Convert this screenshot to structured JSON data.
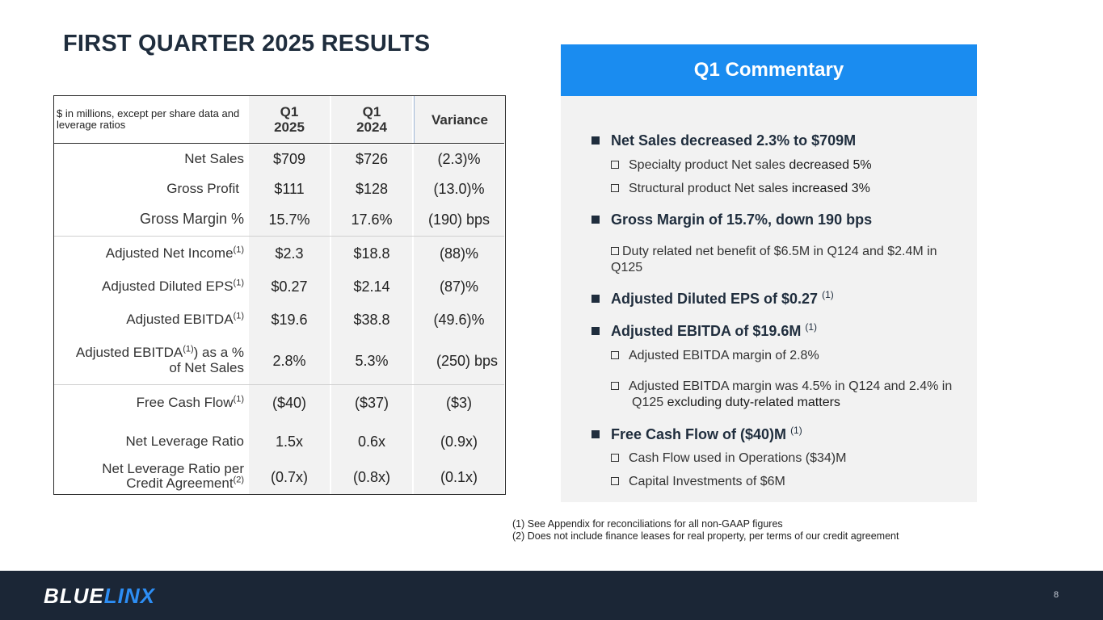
{
  "title": "FIRST QUARTER 2025 RESULTS",
  "table": {
    "header_desc": "$ in millions, except per share data and leverage ratios",
    "col1": "Q1\n2025",
    "col1_a": "Q1",
    "col1_b": "2025",
    "col2_a": "Q1",
    "col2_b": "2024",
    "col3": "Variance",
    "rows": [
      {
        "label": "Net Sales",
        "sup": "",
        "q1_2025": "$709",
        "q1_2024": "$726",
        "variance": "(2.3)%"
      },
      {
        "label": "Gross Profit",
        "sup": "",
        "q1_2025": "$111",
        "q1_2024": "$128",
        "variance": "(13.0)%"
      },
      {
        "label": "Gross Margin %",
        "sup": "",
        "q1_2025": "15.7%",
        "q1_2024": "17.6%",
        "variance": "(190) bps"
      },
      {
        "label": "Adjusted Net Income",
        "sup": "(1)",
        "q1_2025": "$2.3",
        "q1_2024": "$18.8",
        "variance": "(88)%"
      },
      {
        "label": "Adjusted Diluted EPS",
        "sup": "(1)",
        "q1_2025": "$0.27",
        "q1_2024": "$2.14",
        "variance": "(87)%"
      },
      {
        "label": "Adjusted EBITDA",
        "sup": "(1)",
        "q1_2025": "$19.6",
        "q1_2024": "$38.8",
        "variance": "(49.6)%"
      },
      {
        "label_a": "Adjusted EBITDA",
        "sup": "(1)",
        "label_b": ") as a %",
        "label_c": "of Net Sales",
        "q1_2025": "2.8%",
        "q1_2024": "5.3%",
        "variance": "(250) bps"
      },
      {
        "label": "Free Cash Flow",
        "sup": "(1)",
        "q1_2025": "($40)",
        "q1_2024": "($37)",
        "variance": "($3)"
      },
      {
        "label": "Net Leverage Ratio",
        "sup": "",
        "q1_2025": "1.5x",
        "q1_2024": "0.6x",
        "variance": "(0.9x)"
      },
      {
        "label_a": "Net Leverage Ratio per",
        "label_b": "Credit Agreement",
        "sup": "(2)",
        "q1_2025": "(0.7x)",
        "q1_2024": "(0.8x)",
        "variance": "(0.1x)"
      }
    ]
  },
  "commentary": {
    "heading": "Q1 Commentary",
    "b1": {
      "bold": "Net Sales",
      "rest": "decreased 2.3% to $709M"
    },
    "b1_s1_a": "Specialty product Net sales",
    "b1_s1_b": "decreased 5%",
    "b1_s2_a": "Structural product Net sales",
    "b1_s2_b": "increased 3%",
    "b2": "Gross Margin of 15.7%, down 190 bps",
    "b2_s1": "Duty related net benefit of $6.5M in Q124 and $2.4M in Q125",
    "b3": "Adjusted Diluted EPS of $0.27",
    "b3_sup": "(1)",
    "b4": "Adjusted EBITDA of $19.6M",
    "b4_sup": "(1)",
    "b4_s1": "Adjusted EBITDA margin of 2.8%",
    "b4_s2_a": "Adjusted EBITDA margin was 4.5% in Q124 and 2.4% in Q125",
    "b4_s2_b": "excluding duty-related matters",
    "b5": "Free Cash Flow of ($40)M",
    "b5_sup": "(1)",
    "b5_s1": "Cash Flow used in Operations ($34)M",
    "b5_s2": "Capital Investments of $6M"
  },
  "footnotes": {
    "f1": "(1) See Appendix for reconciliations for all non-GAAP figures",
    "f2": "(2) Does not include finance leases for real property, per terms of our credit agreement"
  },
  "footer": {
    "logo_a": "BLUE",
    "logo_b": "LINX",
    "page": "8",
    "bar_color": "#1b2636",
    "accent_color": "#1a8cf0"
  }
}
